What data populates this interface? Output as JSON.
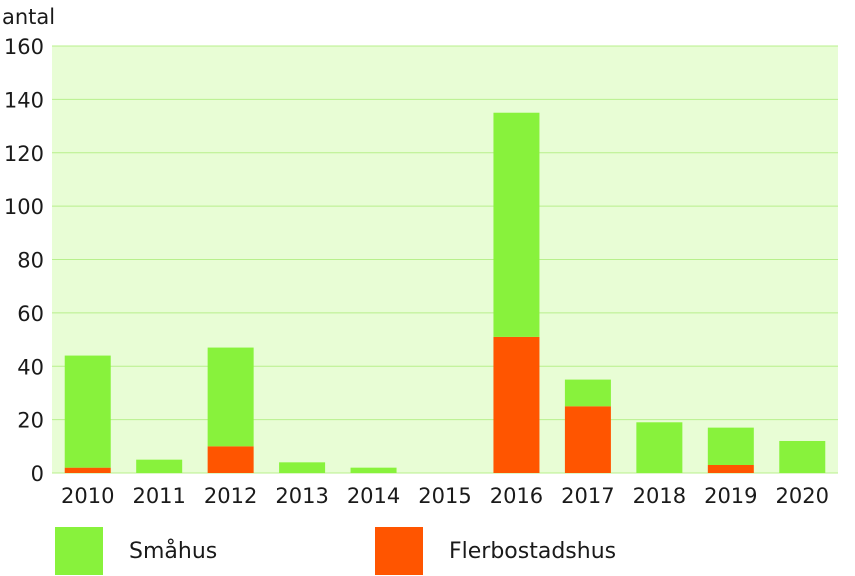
{
  "chart_data": {
    "type": "bar",
    "stacked": true,
    "ylabel": "antal",
    "ylim": [
      0,
      160
    ],
    "yticks": [
      0,
      20,
      40,
      60,
      80,
      100,
      120,
      140,
      160
    ],
    "categories": [
      "2010",
      "2011",
      "2012",
      "2013",
      "2014",
      "2015",
      "2016",
      "2017",
      "2018",
      "2019",
      "2020"
    ],
    "series": [
      {
        "name": "Flerbostadshus",
        "color": "#ff5500",
        "values": [
          2,
          0,
          10,
          0,
          0,
          0,
          51,
          25,
          0,
          3,
          0
        ]
      },
      {
        "name": "Småhus",
        "color": "#88f23c",
        "values": [
          42,
          5,
          37,
          4,
          2,
          0,
          84,
          10,
          19,
          14,
          12
        ]
      }
    ],
    "plot_background": "#e8fdd5",
    "grid": true,
    "legend_order": [
      "Småhus",
      "Flerbostadshus"
    ],
    "legend_position": "bottom"
  }
}
